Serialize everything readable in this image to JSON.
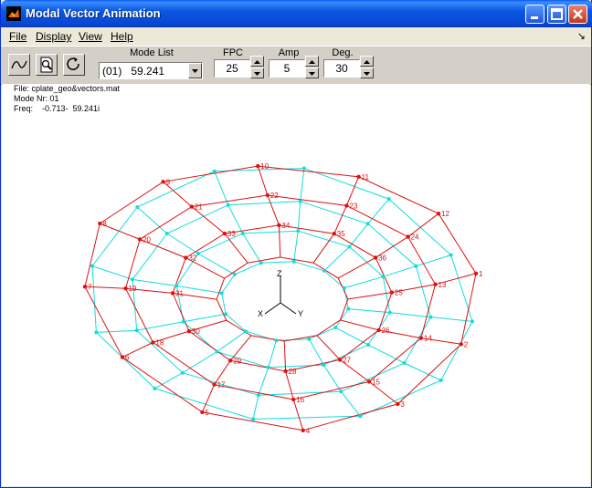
{
  "window": {
    "title": "Modal Vector Animation"
  },
  "menu": {
    "file": "File",
    "display": "Display",
    "view": "View",
    "help": "Help",
    "corner_icon": "dock-arrow-icon"
  },
  "toolbar": {
    "mode_list_label": "Mode List",
    "mode_value": "(01)   59.241",
    "fpc_label": "FPC",
    "fpc_value": "25",
    "amp_label": "Amp",
    "amp_value": "5",
    "deg_label": "Deg.",
    "deg_value": "30",
    "tool_icons": [
      "curve-icon",
      "zoom-page-icon",
      "rotate-icon"
    ]
  },
  "info": {
    "file_line": "File: cplate_geo&vectors.mat",
    "mode_line": "Mode Nr: 01",
    "freq_line": "Freq:    -0.713-  59.241i"
  },
  "plot": {
    "colors": {
      "deformed": "#dd1111",
      "undeformed": "#11dddd",
      "axes": "#000000"
    },
    "axis_labels": {
      "x": "X",
      "y": "Y",
      "z": "Z"
    },
    "node_labels": [
      "1",
      "2",
      "3",
      "4",
      "5",
      "6",
      "7",
      "8",
      "9",
      "10",
      "11",
      "12",
      "13",
      "14",
      "15",
      "16",
      "17",
      "18",
      "19",
      "20",
      "21",
      "22",
      "23",
      "24",
      "25",
      "26",
      "27",
      "28",
      "29",
      "30",
      "31",
      "32",
      "33",
      "34",
      "35",
      "36"
    ]
  }
}
